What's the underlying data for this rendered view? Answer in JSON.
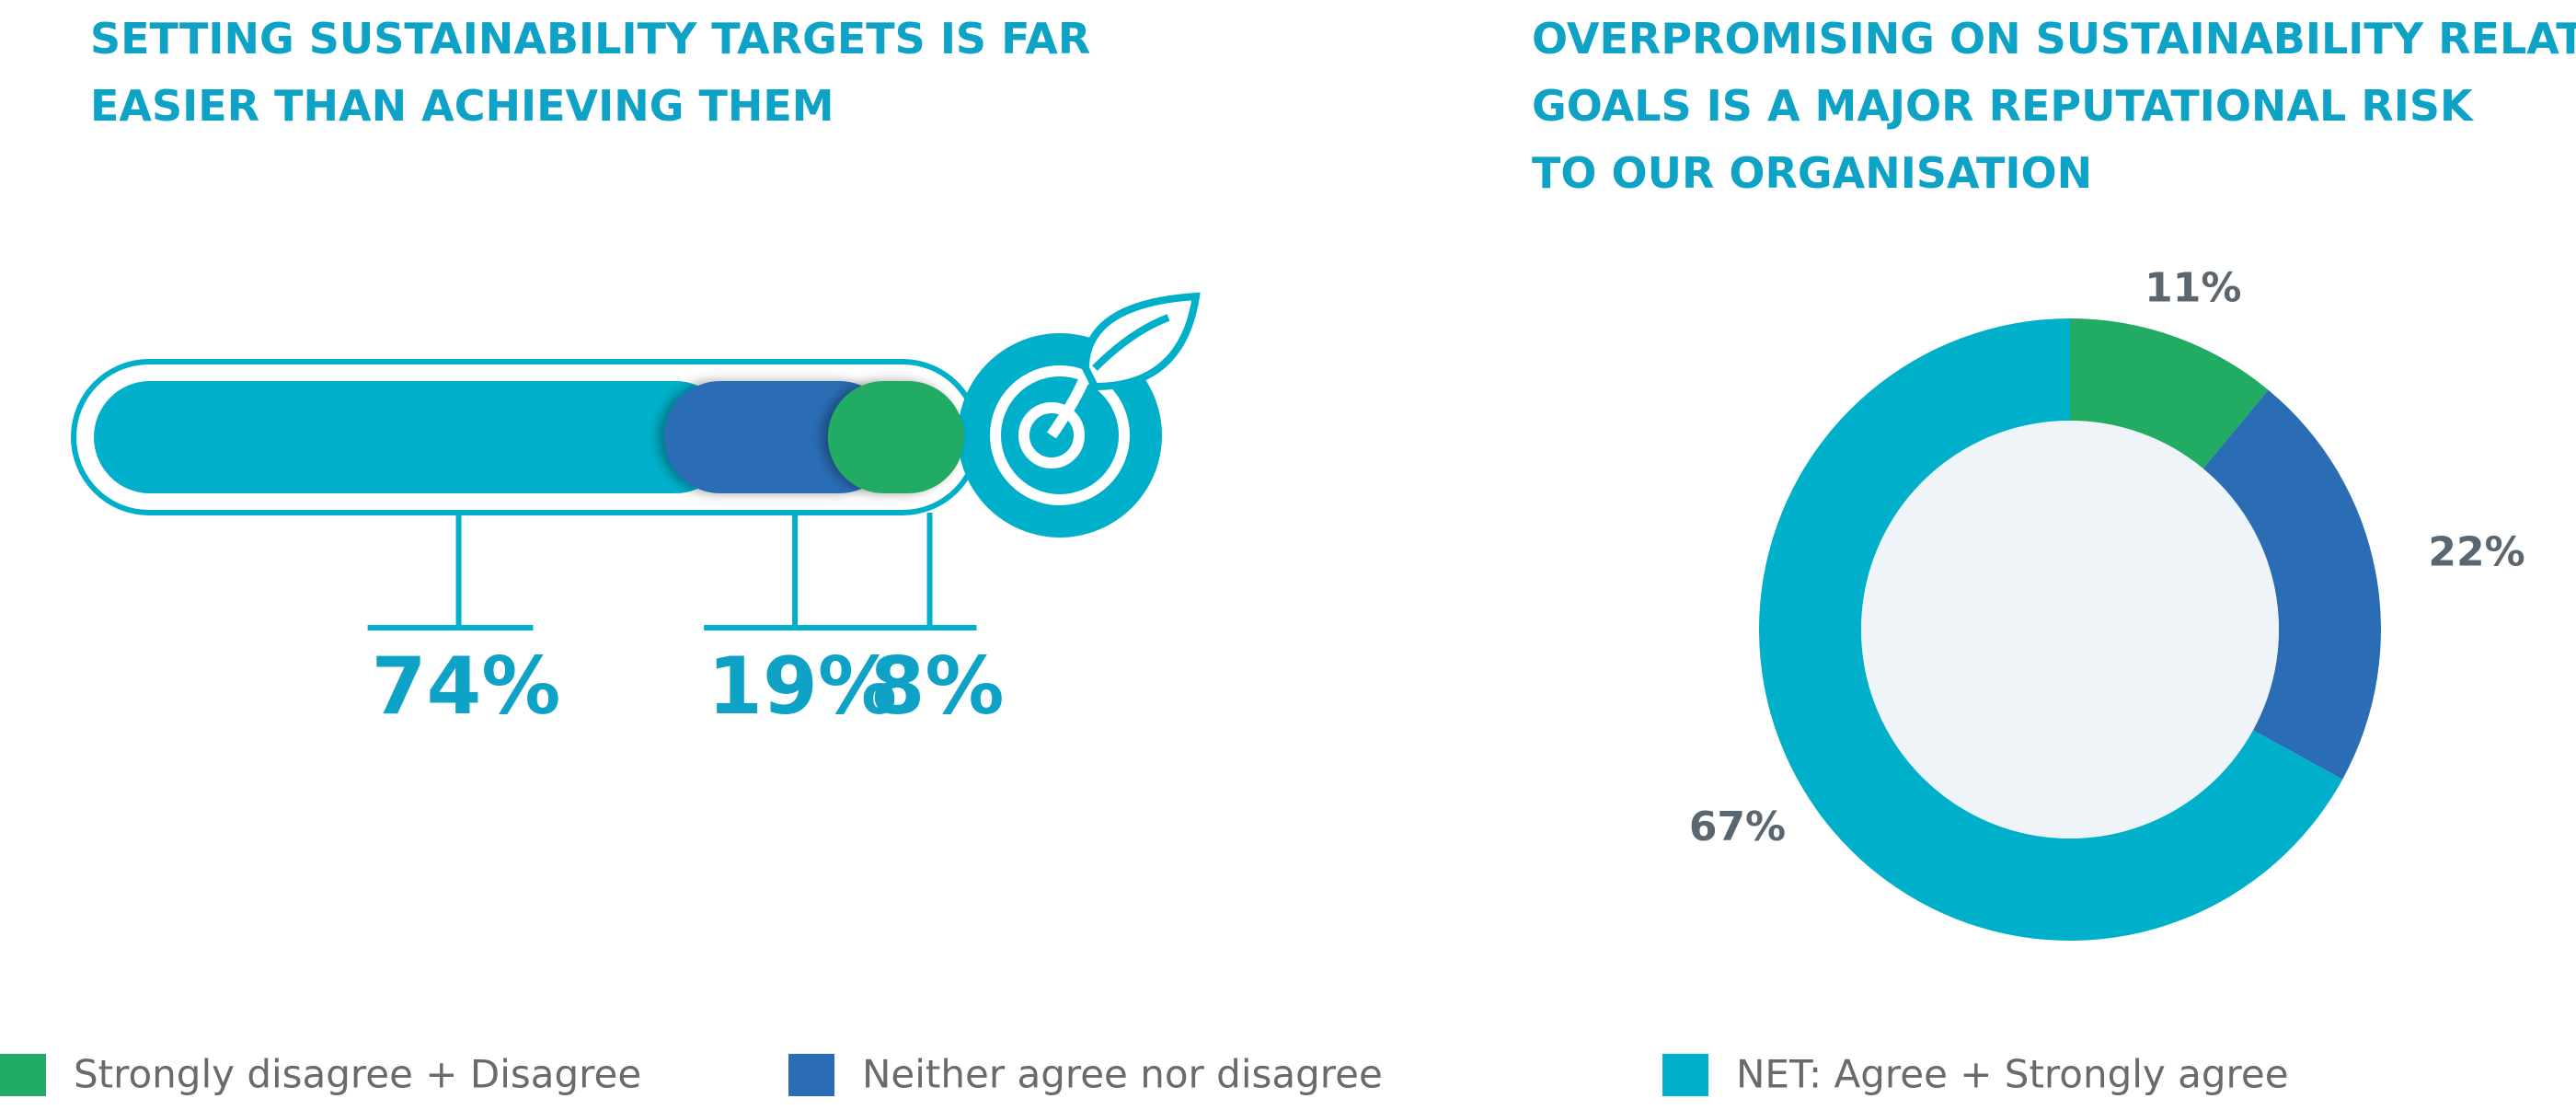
{
  "legend": [
    {
      "name": "Strongly disagree + Disagree",
      "color": "#22ab63"
    },
    {
      "name": "Neither agree nor disagree",
      "color": "#2a6db5"
    },
    {
      "name": "NET: Agree + Strongly agree",
      "color": "#00b0ca"
    }
  ],
  "chart_data": [
    {
      "type": "bar",
      "title": [
        "SETTING SUSTAINABILITY TARGETS IS FAR",
        "EASIER THAN ACHIEVING THEM"
      ],
      "values": [
        8,
        19,
        74
      ],
      "value_labels": [
        "8%",
        "19%",
        "74%"
      ]
    },
    {
      "type": "pie",
      "title": [
        "OVERPROMISING ON SUSTAINABILITY RELATED",
        "GOALS IS A MAJOR REPUTATIONAL RISK",
        "TO OUR ORGANISATION"
      ],
      "values": [
        11,
        22,
        67
      ],
      "value_labels": [
        "11%",
        "22%",
        "67%"
      ]
    }
  ]
}
